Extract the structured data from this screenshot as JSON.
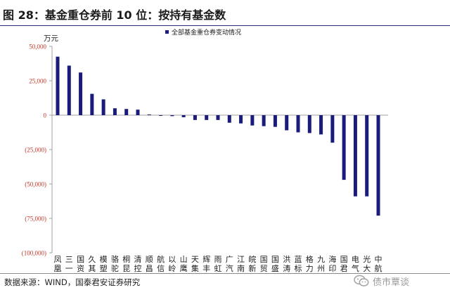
{
  "header": {
    "figure_title": "图 28：基金重仓券前 10 位：按持有基金数"
  },
  "footer": {
    "source": "数据来源：WIND，国泰君安证券研究",
    "watermark": "债市覃谈"
  },
  "icons": {
    "watermark": "wechat-logo-icon"
  },
  "colors": {
    "bar": "#1b1b7c",
    "tick_label": "#c0392b",
    "title_rule": "#1c2a78"
  },
  "chart_data": {
    "type": "bar",
    "unit_label": "万元",
    "legend": {
      "label": "全部基金重仓券变动情况",
      "placement": "top-center"
    },
    "ylim": [
      -100000,
      50000
    ],
    "yticks": [
      50000,
      25000,
      0,
      -25000,
      -50000,
      -75000,
      -100000
    ],
    "ytick_labels": [
      "50,000",
      "25,000",
      "0",
      "(25,000)",
      "(50,000)",
      "(75,000)",
      "(100,000)"
    ],
    "grid": false,
    "categories": [
      [
        "凤",
        "凰"
      ],
      [
        "三",
        "一"
      ],
      [
        "国",
        "资"
      ],
      [
        "久",
        "其"
      ],
      [
        "模",
        "塑"
      ],
      [
        "骆",
        "驼"
      ],
      [
        "桐",
        "昆"
      ],
      [
        "清",
        "控"
      ],
      [
        "顺",
        "昌"
      ],
      [
        "航",
        "信"
      ],
      [
        "以",
        "岭"
      ],
      [
        "山",
        "鹰"
      ],
      [
        "天",
        "集"
      ],
      [
        "辉",
        "丰"
      ],
      [
        "雨",
        "虹"
      ],
      [
        "广",
        "汽"
      ],
      [
        "江",
        "南"
      ],
      [
        "皖",
        "新"
      ],
      [
        "国",
        "贸"
      ],
      [
        "国",
        "盛"
      ],
      [
        "洪",
        "涛"
      ],
      [
        "蓝",
        "标"
      ],
      [
        "格",
        "力"
      ],
      [
        "九",
        "州"
      ],
      [
        "海",
        "印"
      ],
      [
        "国",
        "君"
      ],
      [
        "电",
        "气"
      ],
      [
        "光",
        "大"
      ],
      [
        "中",
        "航"
      ]
    ],
    "values": [
      42500,
      36000,
      31000,
      15500,
      11500,
      5000,
      4500,
      4000,
      500,
      -500,
      -700,
      -1500,
      -3500,
      -3500,
      -3500,
      -5500,
      -6000,
      -7500,
      -8000,
      -8500,
      -11000,
      -12500,
      -13000,
      -14000,
      -20000,
      -47000,
      -59000,
      -59000,
      -73000
    ],
    "series": [
      {
        "name": "全部基金重仓券变动情况"
      }
    ]
  }
}
